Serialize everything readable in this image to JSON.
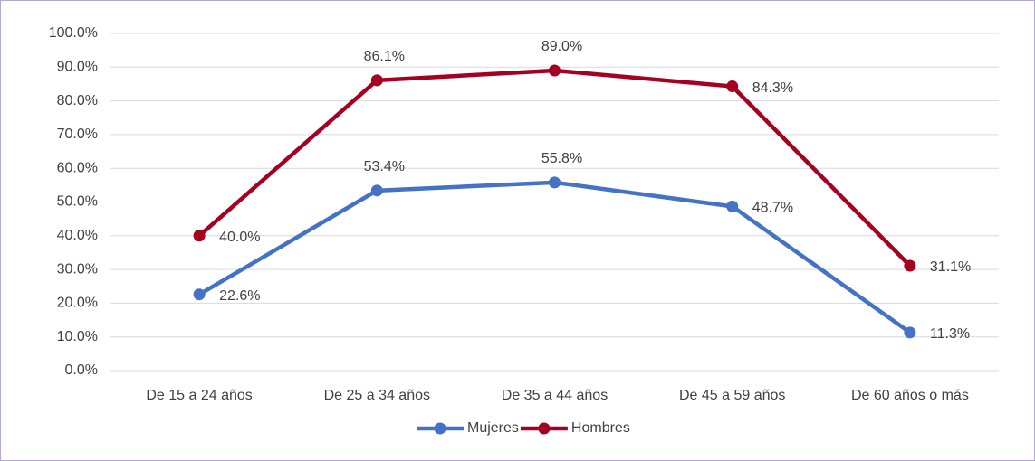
{
  "chart_data": {
    "type": "line",
    "categories": [
      "De 15 a 24 años",
      "De 25 a 34 años",
      "De 35 a 44 años",
      "De 45 a 59 años",
      "De 60 años o más"
    ],
    "series": [
      {
        "name": "Mujeres",
        "color": "#4472c4",
        "values": [
          22.6,
          53.4,
          55.8,
          48.7,
          11.3
        ],
        "value_labels": [
          "22.6%",
          "53.4%",
          "55.8%",
          "48.7%",
          "11.3%"
        ]
      },
      {
        "name": "Hombres",
        "color": "#a50021",
        "values": [
          40.0,
          86.1,
          89.0,
          84.3,
          31.1
        ],
        "value_labels": [
          "40.0%",
          "86.1%",
          "89.0%",
          "84.3%",
          "31.1%"
        ]
      }
    ],
    "ylim": [
      0,
      100
    ],
    "yticks": [
      {
        "value": 0,
        "label": "0.0%"
      },
      {
        "value": 10,
        "label": "10.0%"
      },
      {
        "value": 20,
        "label": "20.0%"
      },
      {
        "value": 30,
        "label": "30.0%"
      },
      {
        "value": 40,
        "label": "40.0%"
      },
      {
        "value": 50,
        "label": "50.0%"
      },
      {
        "value": 60,
        "label": "60.0%"
      },
      {
        "value": 70,
        "label": "70.0%"
      },
      {
        "value": 80,
        "label": "80.0%"
      },
      {
        "value": 90,
        "label": "90.0%"
      },
      {
        "value": 100,
        "label": "100.0%"
      }
    ],
    "grid": true,
    "legend": "bottom"
  }
}
